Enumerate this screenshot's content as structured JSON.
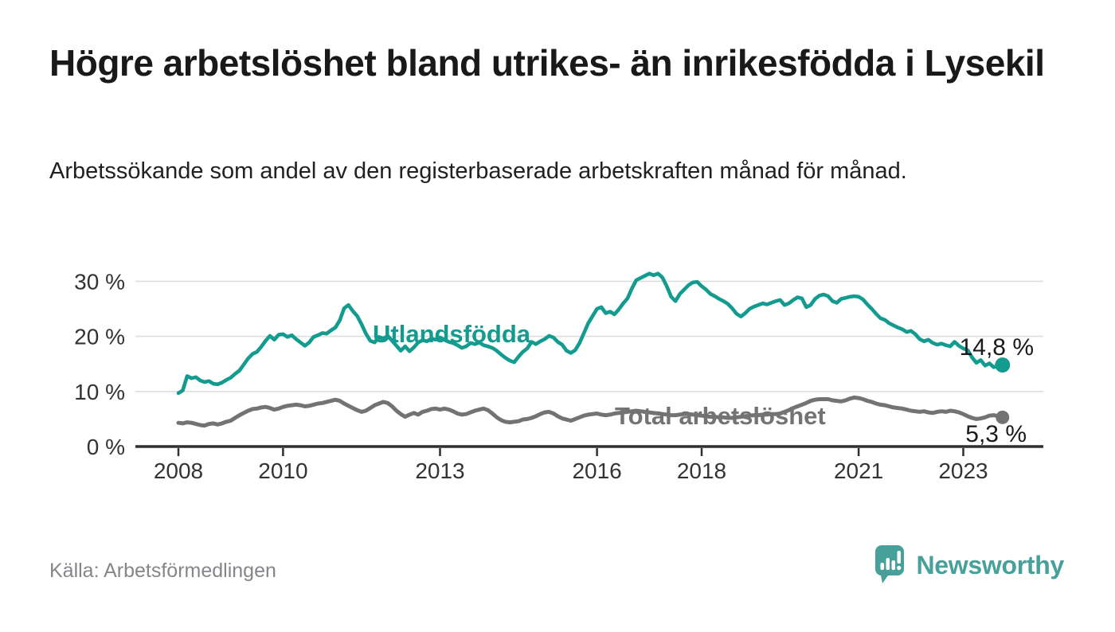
{
  "chart_data": {
    "type": "line",
    "title": "Högre arbetslöshet bland utrikes- än inrikesfödda i Lysekil",
    "subtitle": "Arbetssökande som andel av den registerbaserade arbetskraften månad för månad.",
    "grid": true,
    "legend_position": "inline-labels",
    "x_axis": {
      "ticks": [
        2008,
        2010,
        2013,
        2016,
        2018,
        2021,
        2023
      ],
      "tick_labels": [
        "2008",
        "2010",
        "2013",
        "2016",
        "2018",
        "2021",
        "2023"
      ],
      "range_years": [
        2007.2,
        2024.5
      ]
    },
    "y_axis": {
      "tick_values": [
        0,
        10,
        20,
        30
      ],
      "tick_labels": [
        "0 %",
        "10 %",
        "20 %",
        "30 %"
      ],
      "range": [
        0,
        33
      ],
      "unit": "%"
    },
    "series": [
      {
        "name": "Utlandsfödda",
        "color": "#149b8f",
        "start_year": 2008.0,
        "step_months": 1,
        "end_label": "14,8 %",
        "end_value": 14.8,
        "values": [
          9.7,
          10.2,
          12.8,
          12.4,
          12.6,
          12.0,
          11.7,
          11.9,
          11.4,
          11.3,
          11.6,
          12.1,
          12.5,
          13.2,
          13.8,
          14.9,
          16.0,
          16.8,
          17.2,
          18.1,
          19.2,
          20.1,
          19.4,
          20.3,
          20.4,
          19.9,
          20.2,
          19.5,
          18.9,
          18.3,
          18.9,
          19.9,
          20.2,
          20.6,
          20.5,
          21.1,
          21.6,
          22.9,
          25.1,
          25.7,
          24.6,
          23.7,
          22.2,
          20.5,
          19.2,
          18.9,
          19.9,
          19.6,
          20.1,
          19.2,
          18.3,
          17.4,
          18.2,
          17.3,
          18.0,
          18.9,
          19.3,
          19.1,
          19.6,
          19.4,
          19.8,
          19.4,
          19.0,
          18.8,
          18.4,
          17.9,
          18.2,
          18.8,
          18.6,
          18.9,
          18.4,
          18.2,
          17.9,
          17.4,
          16.7,
          16.1,
          15.6,
          15.3,
          16.3,
          17.2,
          17.8,
          19.0,
          18.6,
          19.1,
          19.5,
          20.1,
          19.8,
          19.0,
          18.5,
          17.4,
          17.0,
          17.5,
          18.8,
          20.6,
          22.4,
          23.7,
          25.0,
          25.3,
          24.2,
          24.5,
          24.0,
          24.9,
          26.0,
          26.9,
          28.7,
          30.2,
          30.6,
          31.0,
          31.4,
          31.1,
          31.4,
          30.7,
          29.1,
          27.2,
          26.4,
          27.7,
          28.5,
          29.3,
          29.8,
          29.9,
          29.1,
          28.5,
          27.7,
          27.3,
          26.8,
          26.4,
          25.9,
          25.1,
          24.1,
          23.6,
          24.2,
          25.0,
          25.4,
          25.7,
          26.0,
          25.8,
          26.1,
          26.4,
          26.6,
          25.7,
          26.0,
          26.6,
          27.1,
          26.9,
          25.3,
          25.7,
          26.8,
          27.4,
          27.6,
          27.3,
          26.4,
          26.1,
          26.8,
          27.0,
          27.2,
          27.3,
          27.2,
          26.7,
          25.8,
          25.0,
          24.1,
          23.3,
          23.0,
          22.4,
          22.0,
          21.6,
          21.3,
          20.8,
          21.0,
          20.4,
          19.5,
          19.1,
          19.4,
          18.8,
          18.5,
          18.7,
          18.4,
          18.2,
          19.0,
          18.3,
          17.8,
          17.5,
          16.2,
          15.2,
          15.7,
          14.7,
          15.1,
          14.4,
          14.7,
          14.8
        ]
      },
      {
        "name": "Total arbetslöshet",
        "color": "#737373",
        "start_year": 2008.0,
        "step_months": 1,
        "end_label": "5,3 %",
        "end_value": 5.3,
        "values": [
          4.3,
          4.2,
          4.4,
          4.3,
          4.1,
          3.9,
          3.8,
          4.1,
          4.2,
          4.0,
          4.2,
          4.5,
          4.7,
          5.2,
          5.7,
          6.1,
          6.5,
          6.8,
          6.9,
          7.1,
          7.2,
          7.0,
          6.7,
          6.9,
          7.2,
          7.4,
          7.5,
          7.6,
          7.5,
          7.3,
          7.4,
          7.6,
          7.8,
          7.9,
          8.1,
          8.3,
          8.5,
          8.3,
          7.8,
          7.4,
          7.0,
          6.6,
          6.3,
          6.5,
          7.0,
          7.5,
          7.8,
          8.1,
          7.9,
          7.3,
          6.5,
          5.9,
          5.4,
          5.8,
          6.1,
          5.8,
          6.3,
          6.5,
          6.8,
          6.9,
          6.7,
          6.9,
          6.7,
          6.4,
          6.0,
          5.8,
          5.9,
          6.2,
          6.5,
          6.7,
          6.9,
          6.6,
          6.0,
          5.3,
          4.8,
          4.5,
          4.4,
          4.5,
          4.6,
          4.9,
          5.0,
          5.2,
          5.5,
          5.9,
          6.2,
          6.3,
          6.0,
          5.5,
          5.1,
          4.9,
          4.7,
          5.0,
          5.3,
          5.6,
          5.8,
          5.9,
          6.0,
          5.8,
          5.7,
          5.8,
          6.0,
          6.1,
          6.2,
          6.3,
          6.4,
          6.5,
          6.4,
          6.3,
          6.2,
          6.1,
          6.0,
          5.9,
          5.8,
          5.7,
          5.7,
          5.8,
          5.9,
          5.9,
          5.8,
          5.7,
          5.6,
          5.5,
          5.4,
          5.4,
          5.3,
          5.3,
          5.2,
          5.2,
          5.3,
          5.4,
          5.5,
          5.6,
          5.7,
          5.7,
          5.8,
          5.8,
          5.9,
          5.9,
          6.0,
          6.3,
          6.6,
          7.0,
          7.3,
          7.6,
          7.9,
          8.3,
          8.5,
          8.6,
          8.6,
          8.6,
          8.4,
          8.3,
          8.2,
          8.4,
          8.7,
          8.9,
          8.8,
          8.6,
          8.3,
          8.1,
          7.8,
          7.6,
          7.5,
          7.3,
          7.1,
          7.0,
          6.9,
          6.7,
          6.5,
          6.4,
          6.3,
          6.4,
          6.2,
          6.1,
          6.3,
          6.4,
          6.3,
          6.5,
          6.4,
          6.2,
          5.9,
          5.5,
          5.2,
          5.0,
          5.1,
          5.3,
          5.6,
          5.7,
          5.5,
          5.3
        ]
      }
    ]
  },
  "footer": {
    "source": "Källa: Arbetsförmedlingen",
    "brand": "Newsworthy",
    "brand_icon": "newsworthy-speech-bubble-bar-chart-icon",
    "brand_color": "#47a09a"
  }
}
